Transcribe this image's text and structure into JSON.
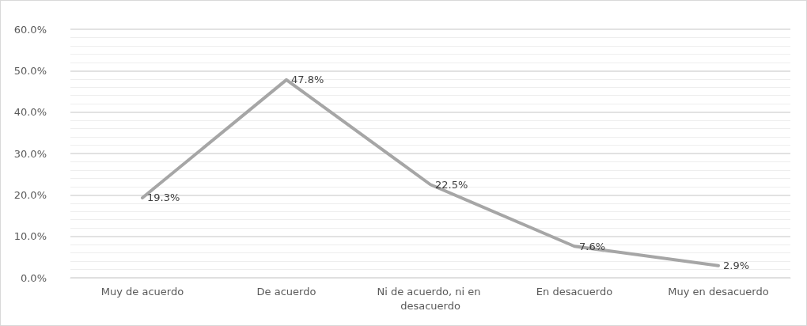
{
  "chart_data": {
    "type": "line",
    "categories": [
      "Muy de acuerdo",
      "De acuerdo",
      "Ni de acuerdo, ni en desacuerdo",
      "En desacuerdo",
      "Muy en desacuerdo"
    ],
    "series": [
      {
        "color": "#a6a6a6",
        "values": [
          19.3,
          47.8,
          22.5,
          7.6,
          2.9
        ],
        "value_labels": [
          "19.3%",
          "47.8%",
          "22.5%",
          "7.6%",
          "2.9%"
        ]
      }
    ],
    "ylim": [
      0,
      60
    ],
    "yticks": [
      {
        "value": 0,
        "label": "0.0%"
      },
      {
        "value": 10,
        "label": "10.0%"
      },
      {
        "value": 20,
        "label": "20.0%"
      },
      {
        "value": 30,
        "label": "30.0%"
      },
      {
        "value": 40,
        "label": "40.0%"
      },
      {
        "value": 50,
        "label": "50.0%"
      },
      {
        "value": 60,
        "label": "60.0%"
      }
    ],
    "grid": "y",
    "marker": "none",
    "line_style": "solid"
  }
}
